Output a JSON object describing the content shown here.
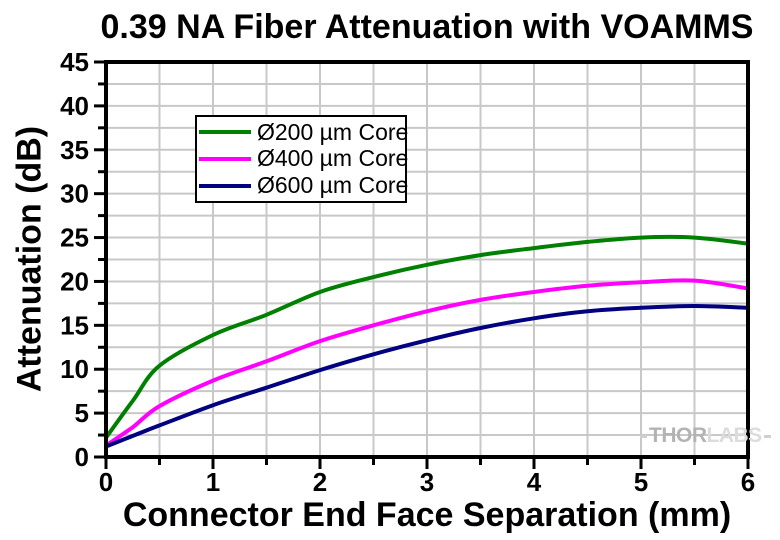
{
  "title": "0.39 NA Fiber Attenuation with VOAMMS",
  "watermark": {
    "part1": "THOR",
    "part2": "LABS"
  },
  "chart_data": {
    "type": "line",
    "title": "0.39 NA Fiber Attenuation with VOAMMS",
    "xlabel": "Connector End Face Separation (mm)",
    "ylabel": "Attenuation (dB)",
    "xlim": [
      0,
      6
    ],
    "ylim": [
      0,
      45
    ],
    "x_major_ticks": [
      0,
      1,
      2,
      3,
      4,
      5,
      6
    ],
    "x_minor_step": 0.5,
    "y_major_ticks": [
      0,
      5,
      10,
      15,
      20,
      25,
      30,
      35,
      40,
      45
    ],
    "y_minor_step": 2.5,
    "grid": "minor-and-major-gridlines-on",
    "grid_color": "#c8c8c8",
    "frame_color": "#000000",
    "legend_position": "upper-left",
    "x": [
      0,
      0.25,
      0.5,
      1,
      1.5,
      2,
      2.5,
      3,
      3.5,
      4,
      4.5,
      5,
      5.5,
      6
    ],
    "series": [
      {
        "name": "Ø200 µm Core",
        "color": "#008000",
        "values": [
          2.2,
          6.4,
          10.4,
          13.9,
          16.2,
          18.8,
          20.5,
          21.9,
          23.0,
          23.8,
          24.5,
          25.0,
          25.0,
          24.3
        ]
      },
      {
        "name": "Ø400 µm Core",
        "color": "#ff00ff",
        "values": [
          1.3,
          3.4,
          5.8,
          8.7,
          10.9,
          13.2,
          15.0,
          16.6,
          17.9,
          18.8,
          19.5,
          19.9,
          20.1,
          19.2
        ]
      },
      {
        "name": "Ø600 µm Core",
        "color": "#000080",
        "values": [
          1.2,
          2.4,
          3.6,
          5.9,
          7.9,
          9.9,
          11.7,
          13.3,
          14.7,
          15.8,
          16.6,
          17.0,
          17.2,
          17.0
        ]
      }
    ]
  }
}
